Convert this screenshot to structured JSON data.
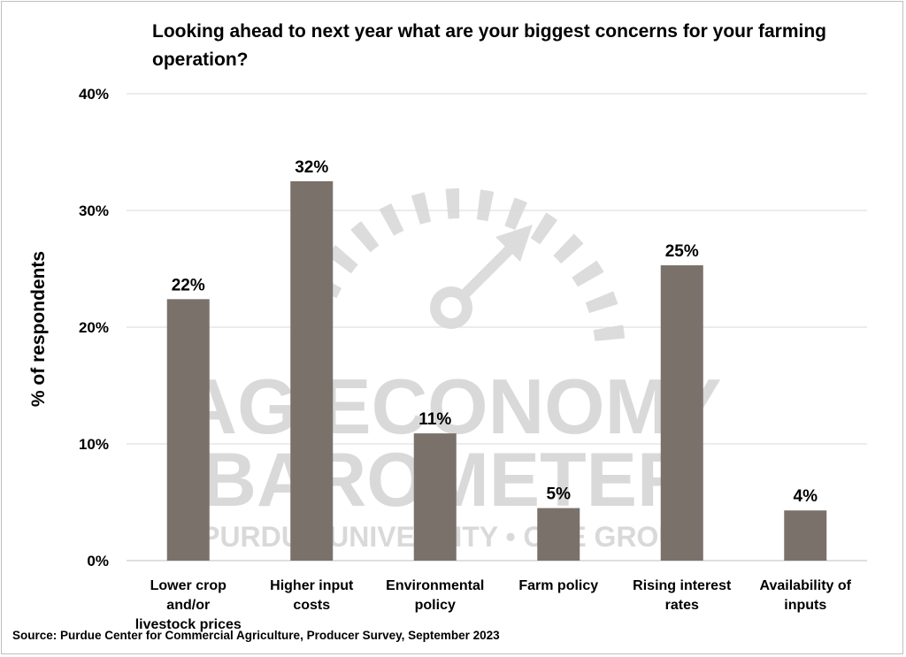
{
  "chart_data": {
    "type": "bar",
    "title": "Looking ahead to next year what are your biggest concerns for your farming operation?",
    "ylabel": "% of respondents",
    "xlabel": "",
    "categories": [
      [
        "Lower crop",
        "and/or",
        "livestock prices"
      ],
      [
        "Higher input",
        "costs"
      ],
      [
        "Environmental",
        "policy"
      ],
      [
        "Farm policy"
      ],
      [
        "Rising interest",
        "rates"
      ],
      [
        "Availability of",
        "inputs"
      ]
    ],
    "values": [
      22.4,
      32.5,
      10.9,
      4.5,
      25.3,
      4.3
    ],
    "data_labels": [
      "22%",
      "32%",
      "11%",
      "5%",
      "25%",
      "4%"
    ],
    "ylim": [
      0,
      40
    ],
    "yticks": [
      0,
      10,
      20,
      30,
      40
    ],
    "ytick_labels": [
      "0%",
      "10%",
      "20%",
      "30%",
      "40%"
    ],
    "bar_color": "#7a716b",
    "grid": true,
    "legend": "none"
  },
  "watermark": {
    "line1": "AG ECONOMY",
    "line2": "BAROMETER",
    "line3": "PURDUE UNIVERSITY • CME GROUP"
  },
  "source": "Source: Purdue Center for Commercial Agriculture, Producer Survey, September 2023"
}
